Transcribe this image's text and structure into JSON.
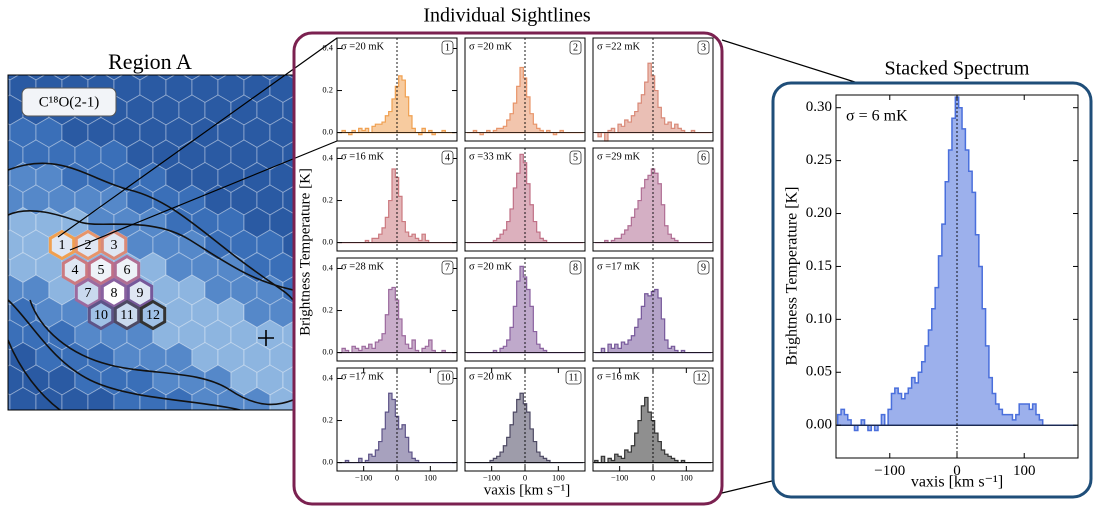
{
  "region_map": {
    "title": "Region A",
    "tracer": "C¹⁸O(2-1)"
  },
  "sightlines": {
    "title": "Individual Sightlines",
    "xlabel": "vaxis [km s⁻¹]",
    "ylabel": "Brightness Temperature [K]"
  },
  "chart_data": [
    {
      "type": "step",
      "panel_label": "1",
      "annotation": "σ =20 mK",
      "color": "#f0a050",
      "x": [
        -170,
        -160,
        -150,
        -140,
        -130,
        -120,
        -110,
        -100,
        -90,
        -80,
        -70,
        -60,
        -50,
        -40,
        -30,
        -20,
        -10,
        0,
        10,
        20,
        30,
        40,
        50,
        60,
        70,
        80,
        90,
        100,
        110,
        120,
        130,
        140,
        150,
        160,
        170
      ],
      "values": [
        0.0,
        0.01,
        0.0,
        -0.01,
        0.01,
        0.0,
        0.02,
        0.01,
        0.02,
        0.0,
        0.03,
        0.04,
        0.04,
        0.05,
        0.08,
        0.1,
        0.16,
        0.22,
        0.27,
        0.25,
        0.17,
        0.08,
        0.02,
        0.0,
        -0.01,
        0.02,
        0.0,
        0.01,
        -0.01,
        0.0,
        0.0,
        0.01,
        0.0,
        0.0,
        0.0
      ],
      "xlim": [
        -180,
        180
      ],
      "ylim": [
        -0.04,
        0.45
      ],
      "yticks": [
        {
          "value": 0,
          "label": "0.0"
        },
        0.2,
        0.4
      ]
    },
    {
      "type": "step",
      "panel_label": "2",
      "annotation": "σ =20 mK",
      "color": "#e8956a",
      "x": [
        -170,
        -160,
        -150,
        -140,
        -130,
        -120,
        -110,
        -100,
        -90,
        -80,
        -70,
        -60,
        -50,
        -40,
        -30,
        -20,
        -10,
        0,
        10,
        20,
        30,
        40,
        50,
        60,
        70,
        80,
        90,
        100,
        110,
        120,
        130,
        140,
        150,
        160,
        170
      ],
      "values": [
        0.0,
        0.0,
        0.01,
        0.0,
        -0.01,
        0.0,
        0.01,
        0.0,
        0.01,
        0.02,
        0.02,
        0.03,
        0.06,
        0.09,
        0.14,
        0.22,
        0.31,
        0.26,
        0.17,
        0.09,
        0.04,
        0.02,
        0.01,
        0.0,
        0.01,
        0.0,
        -0.01,
        0.0,
        0.01,
        0.0,
        0.0,
        0.0,
        0.0,
        0.0,
        0.0
      ],
      "xlim": [
        -180,
        180
      ],
      "ylim": [
        -0.04,
        0.45
      ]
    },
    {
      "type": "step",
      "panel_label": "3",
      "annotation": "σ =22 mK",
      "color": "#d98a78",
      "x": [
        -170,
        -160,
        -150,
        -140,
        -130,
        -120,
        -110,
        -100,
        -90,
        -80,
        -70,
        -60,
        -50,
        -40,
        -30,
        -20,
        -10,
        0,
        10,
        20,
        30,
        40,
        50,
        60,
        70,
        80,
        90,
        100,
        110,
        120,
        130,
        140,
        150,
        160,
        170
      ],
      "values": [
        0.0,
        -0.02,
        0.0,
        -0.04,
        0.01,
        0.02,
        0.0,
        0.04,
        0.03,
        0.06,
        0.05,
        0.08,
        0.1,
        0.14,
        0.18,
        0.24,
        0.33,
        0.27,
        0.2,
        0.12,
        0.07,
        0.04,
        0.05,
        0.02,
        0.04,
        0.02,
        0.01,
        0.0,
        0.0,
        0.01,
        0.0,
        0.0,
        0.0,
        0.0,
        0.0
      ],
      "xlim": [
        -180,
        180
      ],
      "ylim": [
        -0.04,
        0.45
      ]
    },
    {
      "type": "step",
      "panel_label": "4",
      "annotation": "σ =16 mK",
      "color": "#cc7a80",
      "x": [
        -170,
        -160,
        -150,
        -140,
        -130,
        -120,
        -110,
        -100,
        -90,
        -80,
        -70,
        -60,
        -50,
        -40,
        -30,
        -20,
        -10,
        0,
        10,
        20,
        30,
        40,
        50,
        60,
        70,
        80,
        90,
        100,
        110,
        120,
        130,
        140,
        150,
        160,
        170
      ],
      "values": [
        0.0,
        0.0,
        0.0,
        0.0,
        0.0,
        0.0,
        0.0,
        0.0,
        0.01,
        0.0,
        0.02,
        0.02,
        0.04,
        0.07,
        0.12,
        0.2,
        0.35,
        0.31,
        0.22,
        0.1,
        0.05,
        0.03,
        0.04,
        0.02,
        0.01,
        0.04,
        0.01,
        0.0,
        0.0,
        0.0,
        0.0,
        0.0,
        0.0,
        0.0,
        0.0
      ],
      "xlim": [
        -180,
        180
      ],
      "ylim": [
        -0.04,
        0.45
      ],
      "yticks": [
        {
          "value": 0,
          "label": "0.0"
        },
        0.2,
        0.4
      ]
    },
    {
      "type": "step",
      "panel_label": "5",
      "annotation": "σ =33 mK",
      "color": "#c07086",
      "x": [
        -170,
        -160,
        -150,
        -140,
        -130,
        -120,
        -110,
        -100,
        -90,
        -80,
        -70,
        -60,
        -50,
        -40,
        -30,
        -20,
        -10,
        0,
        10,
        20,
        30,
        40,
        50,
        60,
        70,
        80,
        90,
        100,
        110,
        120,
        130,
        140,
        150,
        160,
        170
      ],
      "values": [
        0.0,
        0.0,
        0.0,
        0.0,
        0.0,
        0.0,
        0.0,
        0.0,
        0.01,
        0.02,
        0.04,
        0.06,
        0.1,
        0.16,
        0.26,
        0.33,
        0.42,
        0.38,
        0.28,
        0.18,
        0.1,
        0.05,
        0.02,
        0.01,
        0.0,
        0.0,
        0.0,
        0.0,
        0.0,
        0.0,
        0.0,
        0.0,
        0.0,
        0.0,
        0.0
      ],
      "xlim": [
        -180,
        180
      ],
      "ylim": [
        -0.04,
        0.45
      ]
    },
    {
      "type": "step",
      "panel_label": "6",
      "annotation": "σ =29 mK",
      "color": "#b06e94",
      "x": [
        -170,
        -160,
        -150,
        -140,
        -130,
        -120,
        -110,
        -100,
        -90,
        -80,
        -70,
        -60,
        -50,
        -40,
        -30,
        -20,
        -10,
        0,
        10,
        20,
        30,
        40,
        50,
        60,
        70,
        80,
        90,
        100,
        110,
        120,
        130,
        140,
        150,
        160,
        170
      ],
      "values": [
        0.0,
        0.0,
        0.0,
        0.01,
        0.0,
        0.01,
        0.02,
        0.02,
        0.04,
        0.06,
        0.08,
        0.12,
        0.16,
        0.2,
        0.26,
        0.3,
        0.32,
        0.35,
        0.33,
        0.28,
        0.18,
        0.08,
        0.04,
        0.02,
        0.01,
        0.0,
        0.0,
        0.0,
        0.0,
        0.0,
        0.0,
        0.0,
        0.0,
        0.0,
        0.0
      ],
      "xlim": [
        -180,
        180
      ],
      "ylim": [
        -0.04,
        0.45
      ]
    },
    {
      "type": "step",
      "panel_label": "7",
      "annotation": "σ =28 mK",
      "color": "#9c6a9e",
      "x": [
        -170,
        -160,
        -150,
        -140,
        -130,
        -120,
        -110,
        -100,
        -90,
        -80,
        -70,
        -60,
        -50,
        -40,
        -30,
        -20,
        -10,
        0,
        10,
        20,
        30,
        40,
        50,
        60,
        70,
        80,
        90,
        100,
        110,
        120,
        130,
        140,
        150,
        160,
        170
      ],
      "values": [
        0.0,
        0.02,
        0.01,
        0.0,
        0.03,
        0.02,
        0.01,
        0.03,
        0.02,
        0.04,
        0.02,
        0.05,
        0.06,
        0.09,
        0.18,
        0.3,
        0.31,
        0.25,
        0.16,
        0.08,
        0.04,
        0.02,
        0.06,
        0.01,
        0.0,
        0.02,
        0.03,
        0.06,
        0.01,
        0.0,
        0.0,
        0.01,
        0.0,
        0.0,
        0.0
      ],
      "xlim": [
        -180,
        180
      ],
      "ylim": [
        -0.04,
        0.45
      ],
      "yticks": [
        {
          "value": 0,
          "label": "0.0"
        },
        0.2,
        0.4
      ]
    },
    {
      "type": "step",
      "panel_label": "8",
      "annotation": "σ =20 mK",
      "color": "#8a62a0",
      "x": [
        -170,
        -160,
        -150,
        -140,
        -130,
        -120,
        -110,
        -100,
        -90,
        -80,
        -70,
        -60,
        -50,
        -40,
        -30,
        -20,
        -10,
        0,
        10,
        20,
        30,
        40,
        50,
        60,
        70,
        80,
        90,
        100,
        110,
        120,
        130,
        140,
        150,
        160,
        170
      ],
      "values": [
        0.0,
        0.0,
        0.0,
        0.0,
        0.0,
        0.0,
        0.0,
        0.0,
        0.01,
        0.0,
        0.02,
        0.03,
        0.06,
        0.12,
        0.22,
        0.34,
        0.41,
        0.36,
        0.3,
        0.22,
        0.1,
        0.04,
        0.02,
        0.01,
        0.0,
        0.0,
        0.0,
        0.0,
        0.0,
        0.0,
        0.0,
        0.0,
        0.0,
        0.0,
        0.0
      ],
      "xlim": [
        -180,
        180
      ],
      "ylim": [
        -0.04,
        0.45
      ]
    },
    {
      "type": "step",
      "panel_label": "9",
      "annotation": "σ =17 mK",
      "color": "#76589a",
      "x": [
        -170,
        -160,
        -150,
        -140,
        -130,
        -120,
        -110,
        -100,
        -90,
        -80,
        -70,
        -60,
        -50,
        -40,
        -30,
        -20,
        -10,
        0,
        10,
        20,
        30,
        40,
        50,
        60,
        70,
        80,
        90,
        100,
        110,
        120,
        130,
        140,
        150,
        160,
        170
      ],
      "values": [
        0.0,
        0.0,
        0.02,
        0.0,
        0.04,
        0.02,
        0.04,
        0.02,
        0.05,
        0.04,
        0.06,
        0.08,
        0.12,
        0.16,
        0.22,
        0.28,
        0.27,
        0.29,
        0.3,
        0.26,
        0.16,
        0.06,
        0.02,
        0.03,
        0.01,
        0.0,
        0.01,
        0.0,
        0.0,
        0.0,
        0.0,
        0.0,
        0.0,
        0.0,
        0.0
      ],
      "xlim": [
        -180,
        180
      ],
      "ylim": [
        -0.04,
        0.45
      ]
    },
    {
      "type": "step",
      "panel_label": "10",
      "annotation": "σ =17 mK",
      "color": "#5e5488",
      "x": [
        -170,
        -160,
        -150,
        -140,
        -130,
        -120,
        -110,
        -100,
        -90,
        -80,
        -70,
        -60,
        -50,
        -40,
        -30,
        -20,
        -10,
        0,
        10,
        20,
        30,
        40,
        50,
        60,
        70,
        80,
        90,
        100,
        110,
        120,
        130,
        140,
        150,
        160,
        170
      ],
      "values": [
        0.0,
        0.0,
        0.01,
        0.0,
        0.0,
        0.0,
        0.02,
        0.0,
        0.01,
        0.04,
        0.03,
        0.06,
        0.1,
        0.16,
        0.24,
        0.33,
        0.3,
        0.22,
        0.16,
        0.18,
        0.12,
        0.05,
        0.02,
        0.01,
        0.0,
        0.0,
        0.0,
        0.0,
        0.0,
        0.0,
        0.0,
        0.0,
        0.0,
        0.0,
        0.0
      ],
      "xlim": [
        -180,
        180
      ],
      "ylim": [
        -0.04,
        0.45
      ],
      "yticks": [
        {
          "value": 0,
          "label": "0.0"
        },
        0.2,
        0.4
      ],
      "xticks": [
        {
          "value": -100,
          "label": "−100"
        },
        0,
        100
      ]
    },
    {
      "type": "step",
      "panel_label": "11",
      "annotation": "σ =20 mK",
      "color": "#4e4a64",
      "x": [
        -170,
        -160,
        -150,
        -140,
        -130,
        -120,
        -110,
        -100,
        -90,
        -80,
        -70,
        -60,
        -50,
        -40,
        -30,
        -20,
        -10,
        0,
        10,
        20,
        30,
        40,
        50,
        60,
        70,
        80,
        90,
        100,
        110,
        120,
        130,
        140,
        150,
        160,
        170
      ],
      "values": [
        0.0,
        0.0,
        0.0,
        0.0,
        0.0,
        0.0,
        0.0,
        0.01,
        0.02,
        0.03,
        0.05,
        0.08,
        0.12,
        0.18,
        0.24,
        0.3,
        0.33,
        0.28,
        0.24,
        0.16,
        0.1,
        0.05,
        0.03,
        0.02,
        0.01,
        0.0,
        0.0,
        0.0,
        0.0,
        0.0,
        0.0,
        0.0,
        0.0,
        0.0,
        0.0
      ],
      "xlim": [
        -180,
        180
      ],
      "ylim": [
        -0.04,
        0.45
      ],
      "xticks": [
        {
          "value": -100,
          "label": "−100"
        },
        0,
        100
      ]
    },
    {
      "type": "step",
      "panel_label": "12",
      "annotation": "σ =16 mK",
      "color": "#333333",
      "x": [
        -170,
        -160,
        -150,
        -140,
        -130,
        -120,
        -110,
        -100,
        -90,
        -80,
        -70,
        -60,
        -50,
        -40,
        -30,
        -20,
        -10,
        0,
        10,
        20,
        30,
        40,
        50,
        60,
        70,
        80,
        90,
        100,
        110,
        120,
        130,
        140,
        150,
        160,
        170
      ],
      "values": [
        0.01,
        0.0,
        0.03,
        0.0,
        0.02,
        0.01,
        0.04,
        0.03,
        0.02,
        0.06,
        0.05,
        0.08,
        0.14,
        0.2,
        0.27,
        0.31,
        0.24,
        0.2,
        0.14,
        0.1,
        0.06,
        0.04,
        0.03,
        0.02,
        0.01,
        0.0,
        0.01,
        0.0,
        0.0,
        0.0,
        0.0,
        0.0,
        0.0,
        0.0,
        0.0
      ],
      "xlim": [
        -180,
        180
      ],
      "ylim": [
        -0.04,
        0.45
      ],
      "xticks": [
        {
          "value": -100,
          "label": "−100"
        },
        0,
        100
      ]
    },
    {
      "type": "step",
      "title": "Stacked Spectrum",
      "annotation": "σ = 6 mK",
      "color": "#4a6fdc",
      "xlabel": "vaxis [km s⁻¹]",
      "ylabel": "Brightness Temperature [K]",
      "x": [
        -175,
        -170,
        -165,
        -160,
        -155,
        -150,
        -145,
        -140,
        -135,
        -130,
        -125,
        -120,
        -115,
        -110,
        -105,
        -100,
        -95,
        -90,
        -85,
        -80,
        -75,
        -70,
        -65,
        -60,
        -55,
        -50,
        -45,
        -40,
        -35,
        -30,
        -25,
        -20,
        -15,
        -10,
        -5,
        0,
        5,
        10,
        15,
        20,
        25,
        30,
        35,
        40,
        45,
        50,
        55,
        60,
        65,
        70,
        75,
        80,
        85,
        90,
        95,
        100,
        105,
        110,
        115,
        120,
        125,
        130,
        135,
        140,
        145,
        150,
        155,
        160,
        165,
        170,
        175
      ],
      "values": [
        0.01,
        0.015,
        0.01,
        0.005,
        0.0,
        -0.005,
        0.0,
        0.005,
        0.0,
        -0.005,
        0.0,
        -0.005,
        0.0,
        0.01,
        0.0,
        0.015,
        0.03,
        0.035,
        0.03,
        0.025,
        0.03,
        0.035,
        0.045,
        0.04,
        0.05,
        0.06,
        0.075,
        0.09,
        0.11,
        0.13,
        0.16,
        0.19,
        0.23,
        0.26,
        0.29,
        0.31,
        0.3,
        0.28,
        0.26,
        0.24,
        0.22,
        0.18,
        0.15,
        0.11,
        0.075,
        0.045,
        0.03,
        0.02,
        0.015,
        0.01,
        0.01,
        0.01,
        0.005,
        0.01,
        0.02,
        0.02,
        0.02,
        0.015,
        0.02,
        0.01,
        0.005,
        0.0,
        0.0,
        0.0,
        0.0,
        0.0,
        0.0,
        0.0,
        0.0,
        0.0,
        0.0
      ],
      "xlim": [
        -180,
        180
      ],
      "ylim": [
        -0.031,
        0.312
      ],
      "xticks": [
        {
          "value": -100,
          "label": "−100"
        },
        0,
        100
      ],
      "yticks": [
        {
          "value": 0,
          "label": "0.00"
        },
        {
          "value": 0.05,
          "label": "0.05"
        },
        {
          "value": 0.1,
          "label": "0.10"
        },
        {
          "value": 0.15,
          "label": "0.15"
        },
        {
          "value": 0.2,
          "label": "0.20"
        },
        {
          "value": 0.25,
          "label": "0.25"
        },
        {
          "value": 0.3,
          "label": "0.30"
        }
      ]
    }
  ]
}
